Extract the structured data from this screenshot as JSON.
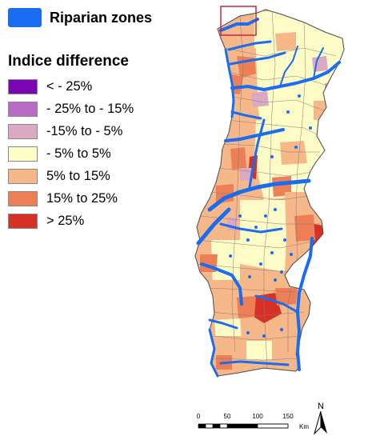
{
  "riparian": {
    "label": "Riparian zones",
    "color": "#1a6cf0"
  },
  "legend": {
    "title": "Indice difference",
    "items": [
      {
        "label": "< - 25%",
        "color": "#7b06b4"
      },
      {
        "label": "- 25% to - 15%",
        "color": "#b96cc6"
      },
      {
        "label": "-15% to - 5%",
        "color": "#dba9c4"
      },
      {
        "label": "- 5% to 5%",
        "color": "#fdfcc6"
      },
      {
        "label": "5% to 15%",
        "color": "#f6b889"
      },
      {
        "label": "15% to 25%",
        "color": "#ec7f55"
      },
      {
        "label": "> 25%",
        "color": "#d73126"
      }
    ]
  },
  "scale": {
    "ticks": [
      "0",
      "50",
      "100",
      "150"
    ],
    "unit": "Km"
  },
  "north": {
    "label": "N"
  },
  "inset_color": "#c0283c"
}
